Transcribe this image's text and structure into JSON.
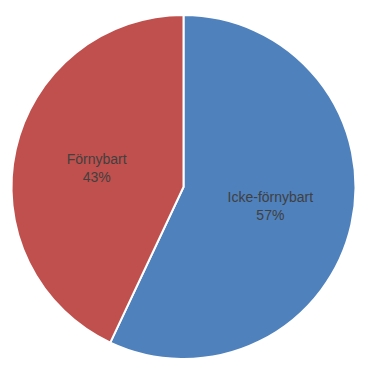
{
  "chart_data": {
    "type": "pie",
    "categories": [
      "Icke-förnybart",
      "Förnybart"
    ],
    "values": [
      57,
      43
    ],
    "value_labels": [
      "57%",
      "43%"
    ],
    "colors": [
      "#4F81BD",
      "#C0504D"
    ],
    "data_labels": true
  }
}
